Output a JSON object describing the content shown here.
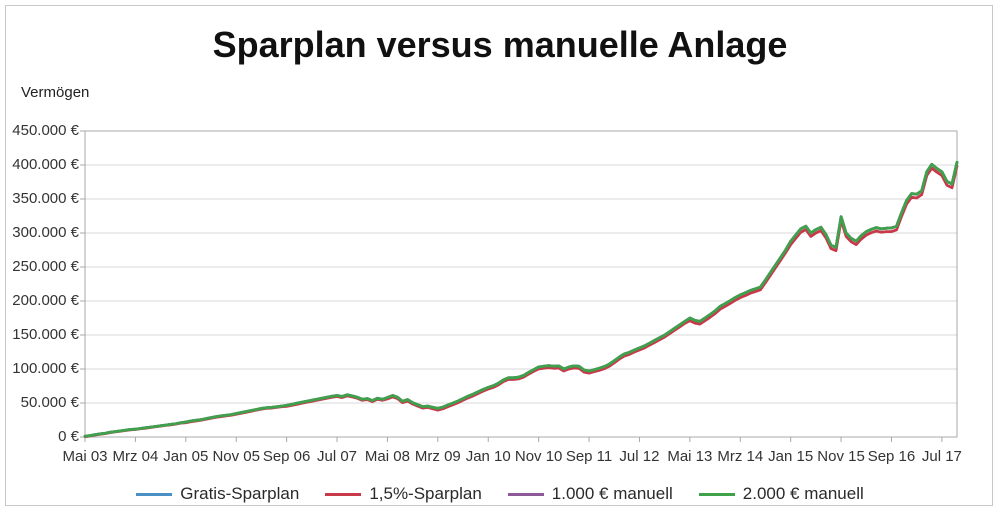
{
  "title": "Sparplan versus manuelle Anlage",
  "y_axis": {
    "title": "Vermögen",
    "labels": [
      "450.000 €",
      "400.000 €",
      "350.000 €",
      "300.000 €",
      "250.000 €",
      "200.000 €",
      "150.000 €",
      "100.000 €",
      "50.000 €",
      "0 €"
    ]
  },
  "x_axis": {
    "labels": [
      "Mai 03",
      "Mrz 04",
      "Jan 05",
      "Nov 05",
      "Sep 06",
      "Jul 07",
      "Mai 08",
      "Mrz 09",
      "Jan 10",
      "Nov 10",
      "Sep 11",
      "Jul 12",
      "Mai 13",
      "Mrz 14",
      "Jan 15",
      "Nov 15",
      "Sep 16",
      "Jul 17"
    ]
  },
  "legend": [
    {
      "label": "Gratis-Sparplan",
      "color": "#4a90c4"
    },
    {
      "label": "1,5%-Sparplan",
      "color": "#c8394a"
    },
    {
      "label": "1.000 € manuell",
      "color": "#8c5a96"
    },
    {
      "label": "2.000 € manuell",
      "color": "#3fa24a"
    }
  ],
  "colors": {
    "grid": "#d9d9d9",
    "axis": "#a8a8a8",
    "title_text": "#111111",
    "label_text": "#333333",
    "background": "#ffffff",
    "frame_border": "#c9c9c9"
  },
  "chart_data": {
    "type": "line",
    "title": "Sparplan versus manuelle Anlage",
    "xlabel": "",
    "ylabel": "Vermögen",
    "ylim": [
      0,
      450000
    ],
    "grid": "horizontal",
    "legend_position": "bottom",
    "categories": [
      "Mai 03",
      "Mrz 04",
      "Jan 05",
      "Nov 05",
      "Sep 06",
      "Jul 07",
      "Mai 08",
      "Mrz 09",
      "Jan 10",
      "Nov 10",
      "Sep 11",
      "Jul 12",
      "Mai 13",
      "Mrz 14",
      "Jan 15",
      "Nov 15",
      "Sep 16",
      "Jul 17"
    ],
    "x_tick_interval_months": 10,
    "x_note": "monthly points from Mai 2003 to Okt 2017; tick every 10 months",
    "values_unit": "EUR thousands",
    "series": [
      {
        "name": "Gratis-Sparplan",
        "color": "#4a90c4",
        "values": [
          1,
          2,
          3.5,
          4.5,
          5.5,
          7,
          8,
          9,
          10,
          11,
          11.5,
          12.5,
          13.5,
          14.5,
          15.5,
          16.5,
          17.5,
          18.5,
          19.5,
          21,
          22,
          23.5,
          24.5,
          25.5,
          27,
          28.5,
          30,
          31,
          32,
          33,
          34.5,
          36,
          37.5,
          39,
          40.5,
          42,
          43,
          43.5,
          44.5,
          45.5,
          46.5,
          48,
          49.5,
          51,
          52.5,
          54,
          55.5,
          57,
          58.5,
          60,
          61,
          59.5,
          62,
          60.5,
          58.5,
          55.5,
          56.5,
          53.5,
          57,
          55.5,
          58,
          61,
          58.5,
          52.5,
          55,
          50.5,
          47.5,
          44.5,
          45.5,
          43.5,
          42,
          44,
          47,
          50,
          53,
          56.5,
          60,
          63,
          66.5,
          70,
          73,
          75.5,
          79,
          84,
          87,
          87,
          88,
          90.5,
          95,
          99,
          103,
          104,
          105,
          104,
          104.5,
          100,
          103,
          104.5,
          104,
          98.5,
          97,
          99,
          101,
          103.5,
          107,
          112,
          117.5,
          122,
          124.5,
          128,
          131,
          134,
          138,
          142,
          146,
          150,
          155,
          160,
          165,
          170,
          175,
          171.5,
          170,
          175,
          180,
          185.5,
          192,
          196,
          200.5,
          205,
          209,
          212,
          215.5,
          218,
          220.5,
          231,
          242,
          253,
          264,
          275,
          288,
          297,
          306,
          310,
          300,
          305,
          308.5,
          298,
          282,
          279,
          324,
          300,
          292,
          288,
          296,
          302,
          305.5,
          308,
          306,
          307,
          307.5,
          310,
          330,
          348,
          358,
          357,
          362,
          390,
          401,
          395,
          390,
          376,
          372,
          404
        ]
      },
      {
        "name": "1,5%-Sparplan",
        "color": "#c8394a",
        "values": [
          0.5,
          1.5,
          3,
          4,
          5,
          6.5,
          7.5,
          8.5,
          9.5,
          10.5,
          11,
          12,
          13,
          14,
          15,
          16,
          17,
          18,
          19,
          20.5,
          21,
          22.5,
          23.5,
          24.5,
          26,
          27.5,
          29,
          30,
          31,
          32,
          33.5,
          35,
          36.5,
          38,
          39.5,
          41,
          42,
          42.5,
          43.5,
          44.5,
          45,
          46.5,
          48,
          49.5,
          51,
          52.5,
          54,
          55.5,
          57,
          58.5,
          59.5,
          58,
          60.5,
          59,
          57,
          54,
          55,
          52,
          55.5,
          54,
          56,
          59,
          56.5,
          50.5,
          53,
          48.5,
          45.5,
          42.5,
          43.5,
          41.5,
          39.5,
          41.5,
          44.5,
          47.5,
          50.5,
          54,
          57.5,
          60.5,
          64,
          67.5,
          70.5,
          73,
          76.5,
          81.5,
          84.5,
          84.5,
          85.5,
          88,
          92.5,
          96.5,
          100,
          101,
          102,
          101,
          101.5,
          97,
          100,
          101.5,
          101,
          95.5,
          94,
          96,
          98,
          100.5,
          104,
          109,
          114.5,
          119,
          121.5,
          125,
          128,
          131,
          135,
          139,
          143,
          147,
          152,
          157,
          162,
          167,
          171,
          167.5,
          166,
          171,
          176,
          181.5,
          188,
          192,
          196.5,
          201,
          205,
          208,
          211.5,
          214,
          216.5,
          227,
          238,
          249,
          260,
          271,
          283,
          292,
          301,
          305,
          295,
          300,
          303.5,
          293,
          277,
          274,
          319,
          295,
          287,
          283,
          291,
          297,
          300.5,
          303,
          301,
          302,
          302,
          304.5,
          324.5,
          342.5,
          352.5,
          351.5,
          356.5,
          384.5,
          395.5,
          389.5,
          384.5,
          370.5,
          366.5,
          398.5
        ]
      },
      {
        "name": "1.000 € manuell",
        "color": "#8c5a96",
        "values": [
          1,
          2,
          3.5,
          4.5,
          5.5,
          7,
          8,
          9,
          10,
          11,
          11.5,
          12.5,
          13.5,
          14.5,
          15.5,
          16.5,
          17.5,
          18.5,
          19.5,
          21,
          22,
          23.5,
          24.5,
          25.5,
          27,
          28.5,
          30,
          31,
          32,
          33,
          34.5,
          36,
          37.5,
          39,
          40.5,
          42,
          43,
          43.5,
          44.5,
          45.5,
          46.5,
          48,
          49.5,
          51,
          52.5,
          54,
          55.5,
          57,
          58.5,
          60,
          61,
          59.5,
          62,
          60.5,
          58.5,
          55.5,
          56.5,
          53.5,
          57,
          55.5,
          58,
          61,
          58.5,
          52.5,
          55,
          50.5,
          47.5,
          44.5,
          45.5,
          43.5,
          42,
          44,
          47,
          50,
          53,
          56.5,
          60,
          63,
          66.5,
          70,
          73,
          75.5,
          79,
          84,
          87,
          87,
          88,
          90.5,
          95,
          99,
          103,
          104,
          105,
          104,
          104.5,
          100,
          103,
          104.5,
          104,
          98.5,
          97,
          99,
          101,
          103.5,
          107,
          112,
          117.5,
          122,
          124.5,
          128,
          131,
          134,
          138,
          142,
          146,
          150,
          155,
          160,
          165,
          170,
          175,
          171.5,
          170,
          175,
          180,
          185.5,
          192,
          196,
          200.5,
          205,
          209,
          212,
          215.5,
          218,
          220.5,
          231,
          242,
          253,
          264,
          275,
          288,
          297,
          306,
          310,
          300,
          305,
          308.5,
          298,
          282,
          279,
          324,
          300,
          292,
          288,
          296,
          302,
          305.5,
          308,
          306,
          307,
          307.5,
          310,
          330,
          348,
          358,
          357,
          362,
          390,
          401,
          395,
          390,
          376,
          372,
          404
        ]
      },
      {
        "name": "2.000 € manuell",
        "color": "#3fa24a",
        "values": [
          1,
          2,
          3.5,
          4.5,
          5.5,
          7,
          8,
          9,
          10,
          11,
          11.5,
          12.5,
          13.5,
          14.5,
          15.5,
          16.5,
          17.5,
          18.5,
          19.5,
          21,
          22,
          23.5,
          24.5,
          25.5,
          27,
          28.5,
          30,
          31,
          32,
          33,
          34.5,
          36,
          37.5,
          39,
          40.5,
          42,
          43,
          43.5,
          44.5,
          45.5,
          46.5,
          48,
          49.5,
          51,
          52.5,
          54,
          55.5,
          57,
          58.5,
          60,
          61,
          59.5,
          62,
          60.5,
          58.5,
          55.5,
          56.5,
          53.5,
          57,
          55.5,
          58,
          61,
          58.5,
          52.5,
          55,
          50.5,
          47.5,
          44.5,
          45.5,
          43.5,
          42,
          44,
          47,
          50,
          53,
          56.5,
          60,
          63,
          66.5,
          70,
          73,
          75.5,
          79,
          84,
          87,
          87,
          88,
          90.5,
          95,
          99,
          103,
          104,
          105,
          104,
          104.5,
          100,
          103,
          104.5,
          104,
          98.5,
          97,
          99,
          101,
          103.5,
          107,
          112,
          117.5,
          122,
          124.5,
          128,
          131,
          134,
          138,
          142,
          146,
          150,
          155,
          160,
          165,
          170,
          175,
          171.5,
          170,
          175,
          180,
          185.5,
          192,
          196,
          200.5,
          205,
          209,
          212,
          215.5,
          218,
          220.5,
          231,
          242,
          253,
          264,
          275,
          288,
          297,
          306,
          310,
          300,
          305,
          308.5,
          298,
          282,
          279,
          324,
          300,
          292,
          288,
          296,
          302,
          305.5,
          308,
          306,
          307,
          307.5,
          310,
          330,
          348,
          358,
          357,
          362,
          390,
          401,
          395,
          390,
          376,
          372,
          404
        ]
      }
    ]
  }
}
